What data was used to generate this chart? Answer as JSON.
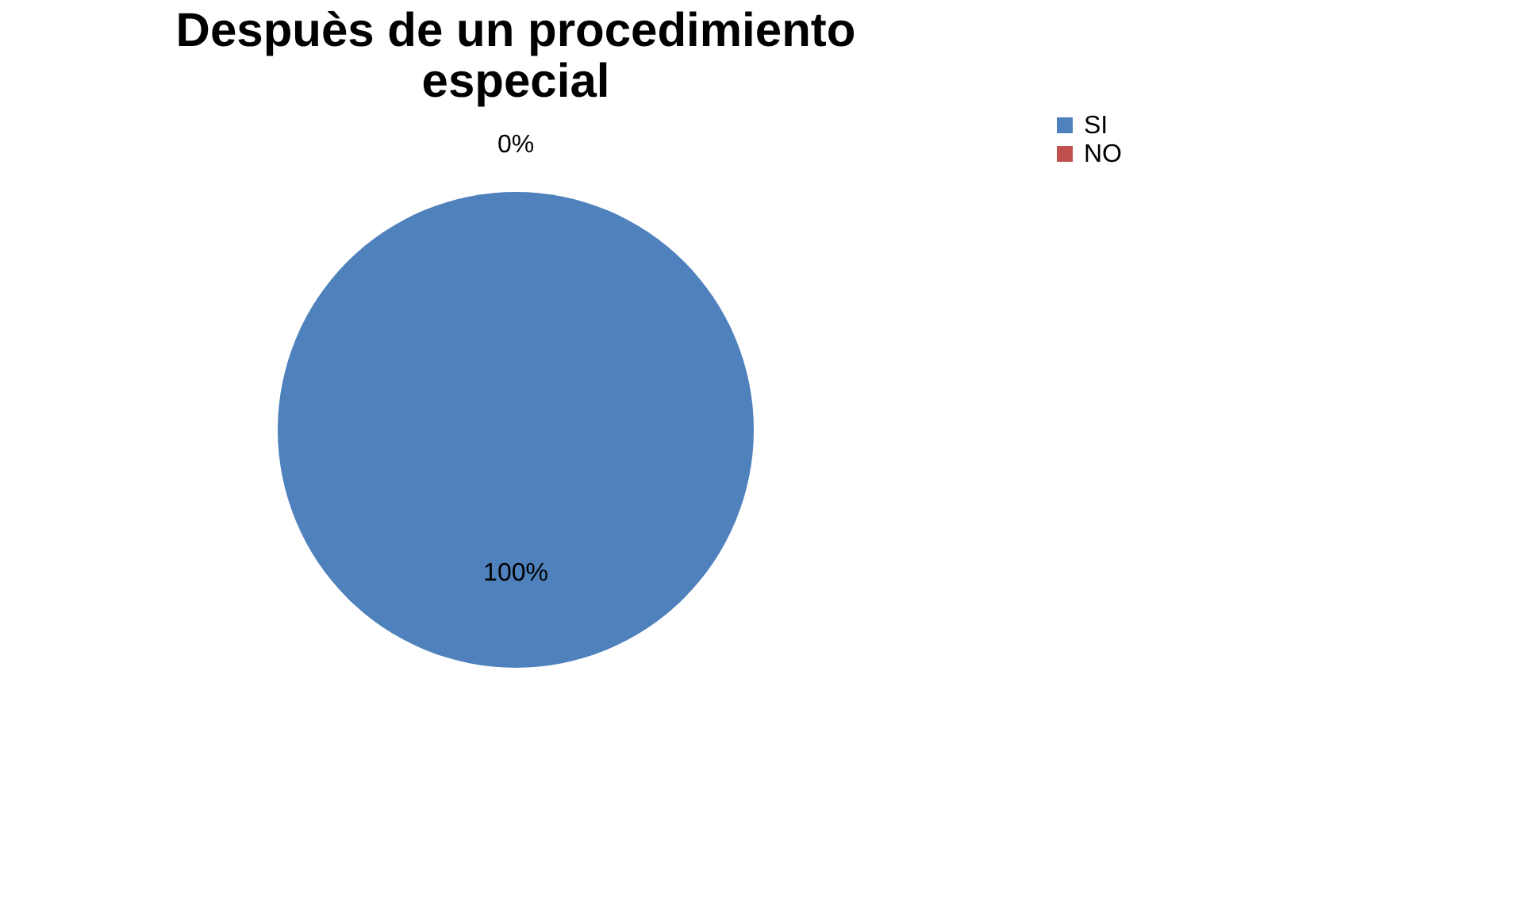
{
  "chart_data": {
    "type": "pie",
    "title": "Despuès de un procedimiento especial",
    "categories": [
      "SI",
      "NO"
    ],
    "values": [
      100,
      0
    ],
    "colors": [
      "#4f81bd",
      "#c0504d"
    ],
    "value_labels": [
      "100%",
      "0%"
    ],
    "legend": "right"
  }
}
